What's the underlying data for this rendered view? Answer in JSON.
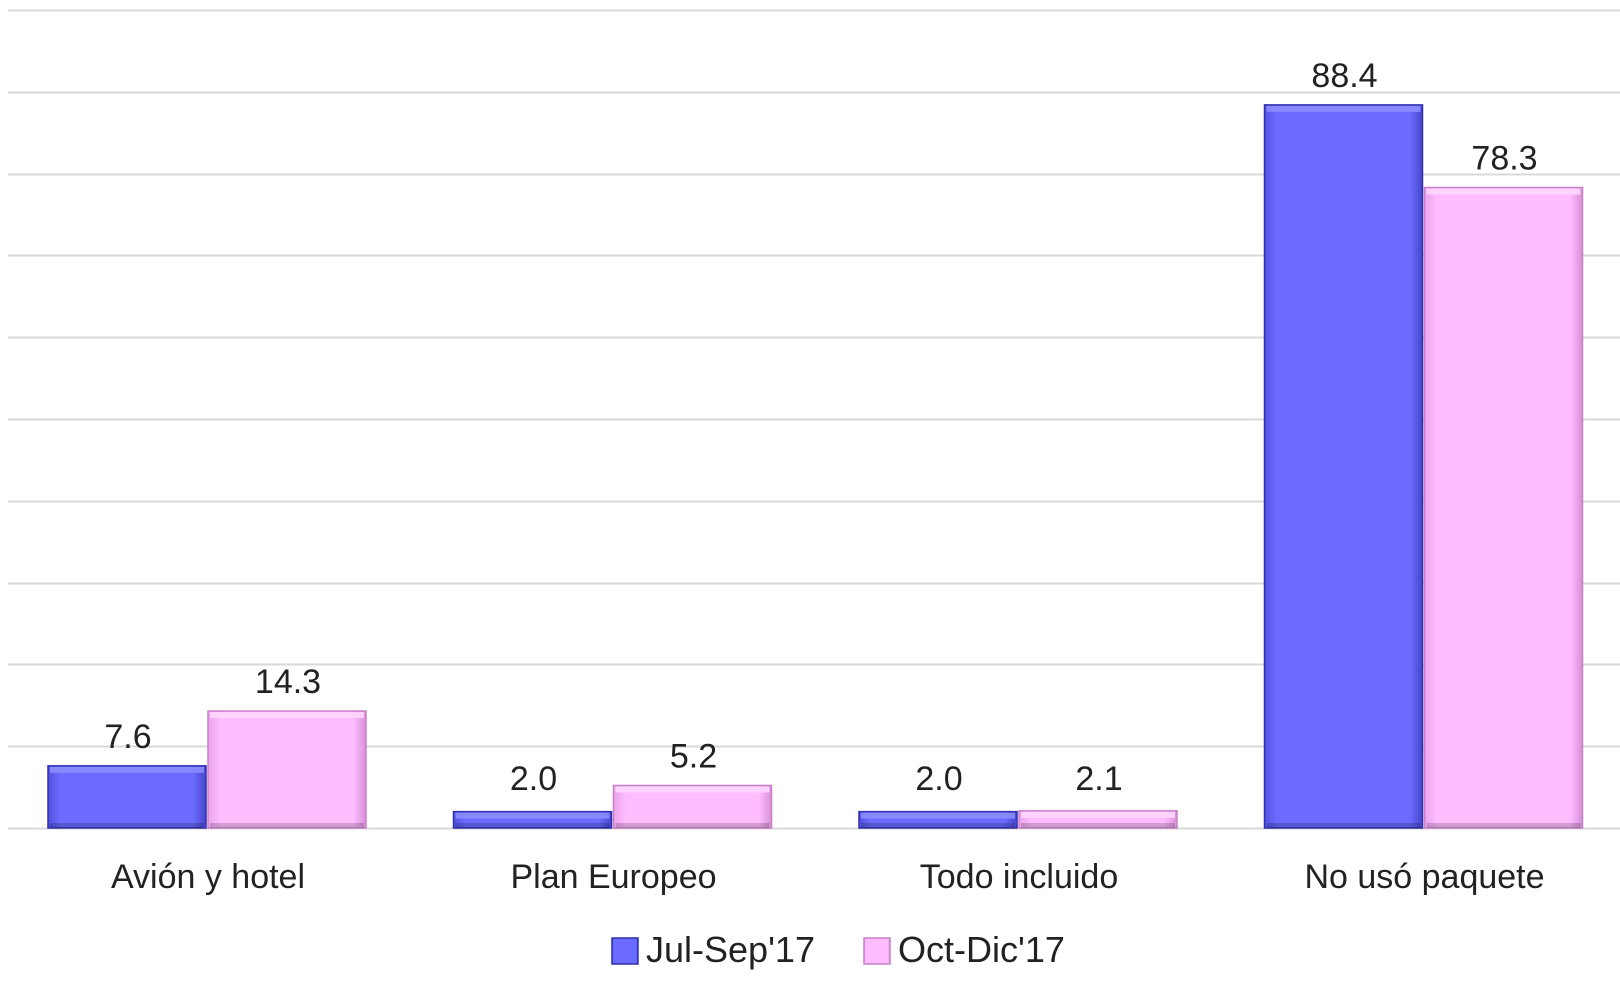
{
  "chart_data": {
    "type": "bar",
    "categories": [
      "Avión y hotel",
      "Plan Europeo",
      "Todo incluido",
      "No usó paquete"
    ],
    "series": [
      {
        "name": "Jul-Sep'17",
        "values": [
          7.6,
          2.0,
          2.0,
          88.4
        ],
        "labels": [
          "7.6",
          "2.0",
          "2.0",
          "88.4"
        ],
        "color": "#6b6bff"
      },
      {
        "name": "Oct-Dic'17",
        "values": [
          14.3,
          5.2,
          2.1,
          78.3
        ],
        "labels": [
          "14.3",
          "5.2",
          "2.1",
          "78.3"
        ],
        "color": "#ffb9ff"
      }
    ],
    "ylim": [
      0,
      100
    ],
    "grid": true,
    "legend_position": "bottom"
  }
}
